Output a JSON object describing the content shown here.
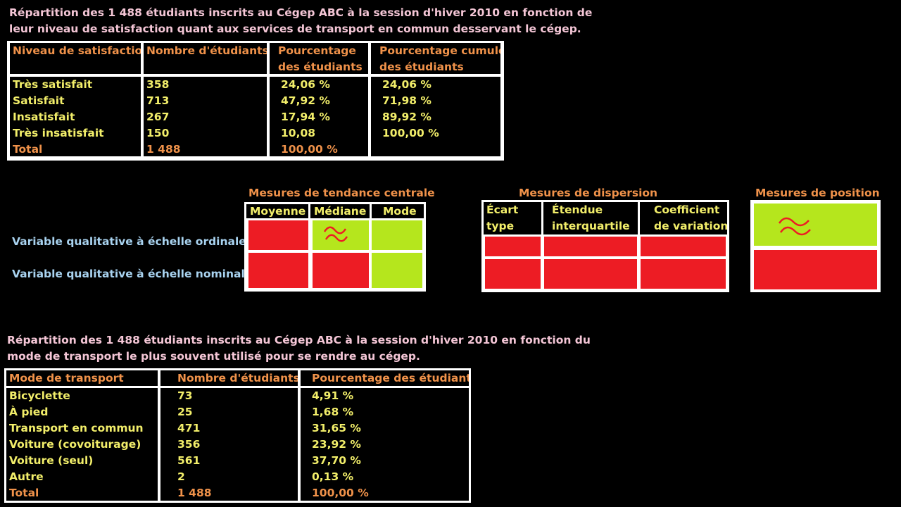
{
  "satisfaction": {
    "title_line1": "Répartition des 1 488 étudiants inscrits au Cégep ABC à la session d'hiver 2010 en fonction de",
    "title_line2": "leur niveau de satisfaction quant aux services de transport en commun desservant le cégep.",
    "headers": [
      "Niveau de satisfaction",
      "Nombre d'étudiants",
      "Pourcentage",
      "des étudiants",
      "Pourcentage cumulé",
      "des étudiants"
    ],
    "rows": [
      {
        "label": "Très satisfait",
        "count": "358",
        "pct": "24,06 %",
        "cum": "24,06 %"
      },
      {
        "label": "Satisfait",
        "count": "713",
        "pct": "47,92 %",
        "cum": "71,98 %"
      },
      {
        "label": "Insatisfait",
        "count": "267",
        "pct": "17,94 %",
        "cum": "89,92 %"
      },
      {
        "label": "Très insatisfait",
        "count": "150",
        "pct": "10,08",
        "cum": "100,00 %"
      }
    ],
    "total": {
      "label": "Total",
      "count": "1 488",
      "pct": "100,00 %"
    }
  },
  "measures": {
    "central": {
      "caption": "Mesures de tendance centrale",
      "cols": [
        "Moyenne",
        "Médiane",
        "Mode"
      ]
    },
    "dispersion": {
      "caption": "Mesures de dispersion",
      "cols_l1": [
        "Écart",
        "Étendue",
        "Coefficient"
      ],
      "cols_l2": [
        "type",
        "interquartile",
        "de variation"
      ]
    },
    "position": {
      "caption": "Mesures de position"
    },
    "row_labels": [
      "Variable qualitative à échelle ordinale",
      "Variable qualitative à échelle nominale"
    ],
    "colors": {
      "applicable": "#b5e61d",
      "not_applicable": "#ed1c24"
    }
  },
  "transport": {
    "title_line1": "Répartition des 1 488 étudiants inscrits au Cégep ABC à la session d'hiver 2010 en fonction du",
    "title_line2": "mode de transport le plus souvent utilisé pour se rendre au cégep.",
    "headers": [
      "Mode de transport",
      "Nombre d'étudiants",
      "Pourcentage des étudiants"
    ],
    "rows": [
      {
        "label": "Bicyclette",
        "count": "73",
        "pct": "4,91 %"
      },
      {
        "label": "À pied",
        "count": "25",
        "pct": "1,68 %"
      },
      {
        "label": "Transport en commun",
        "count": "471",
        "pct": "31,65 %"
      },
      {
        "label": "Voiture (covoiturage)",
        "count": "356",
        "pct": "23,92 %"
      },
      {
        "label": "Voiture (seul)",
        "count": "561",
        "pct": "37,70 %"
      },
      {
        "label": "Autre",
        "count": "2",
        "pct": "0,13 %"
      }
    ],
    "total": {
      "label": "Total",
      "count": "1 488",
      "pct": "100,00 %"
    }
  }
}
